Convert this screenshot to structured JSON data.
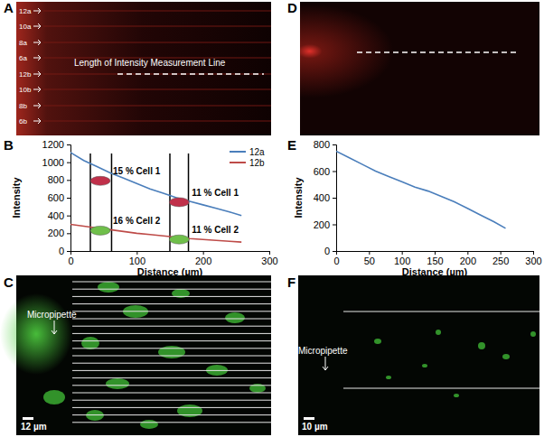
{
  "chart_data": [
    {
      "type": "line",
      "x": [
        0,
        20,
        40,
        60,
        80,
        100,
        120,
        140,
        160,
        180,
        200,
        220,
        240,
        258
      ],
      "series": [
        {
          "name": "12a",
          "color": "#4a7ebb",
          "values": [
            1110,
            1020,
            950,
            880,
            820,
            760,
            700,
            650,
            600,
            560,
            520,
            480,
            440,
            400
          ]
        },
        {
          "name": "12b",
          "color": "#be4b48",
          "values": [
            300,
            280,
            260,
            240,
            220,
            200,
            185,
            170,
            155,
            140,
            130,
            120,
            110,
            100
          ]
        }
      ],
      "xlim": [
        0,
        300
      ],
      "xticks": [
        0,
        100,
        200,
        300
      ],
      "ylim": [
        0,
        1200
      ],
      "yticks": [
        0,
        200,
        400,
        600,
        800,
        1000,
        1200
      ],
      "xlabel": "Distance (µm)",
      "ylabel": "Intensity",
      "legend": "upper right",
      "vlines": [
        30,
        62,
        150,
        178
      ],
      "annotations": [
        {
          "text": "15 % Cell 1",
          "x": 45,
          "y": 790,
          "color": "#c0304a"
        },
        {
          "text": "11 % Cell 1",
          "x": 164,
          "y": 550,
          "color": "#c0304a"
        },
        {
          "text": "16 % Cell 2",
          "x": 45,
          "y": 230,
          "color": "#6fbf4a"
        },
        {
          "text": "11 % Cell 2",
          "x": 164,
          "y": 130,
          "color": "#6fbf4a"
        }
      ]
    },
    {
      "type": "line",
      "x": [
        0,
        20,
        40,
        60,
        80,
        100,
        120,
        140,
        160,
        180,
        200,
        220,
        240,
        258
      ],
      "series": [
        {
          "color": "#4a7ebb",
          "values": [
            750,
            700,
            650,
            600,
            560,
            520,
            480,
            450,
            410,
            370,
            320,
            270,
            220,
            170
          ]
        }
      ],
      "xlim": [
        0,
        300
      ],
      "xticks": [
        0,
        50,
        100,
        150,
        200,
        250,
        300
      ],
      "ylim": [
        0,
        800
      ],
      "yticks": [
        0,
        200,
        400,
        600,
        800
      ],
      "xlabel": "Distance (µm)",
      "ylabel": "Intensity"
    }
  ],
  "panel_labels": [
    "A",
    "B",
    "C",
    "D",
    "E",
    "F"
  ],
  "images": {
    "A": {
      "row_labels": [
        "12a",
        "10a",
        "8a",
        "6a",
        "12b",
        "10b",
        "8b",
        "6b"
      ],
      "line_label": "Length of Intensity Measurement Line"
    },
    "C": {
      "pointer_label": "Micropipette",
      "scale_bar": "12 µm"
    },
    "F": {
      "pointer_label": "Micropipette",
      "scale_bar": "10 µm"
    }
  }
}
